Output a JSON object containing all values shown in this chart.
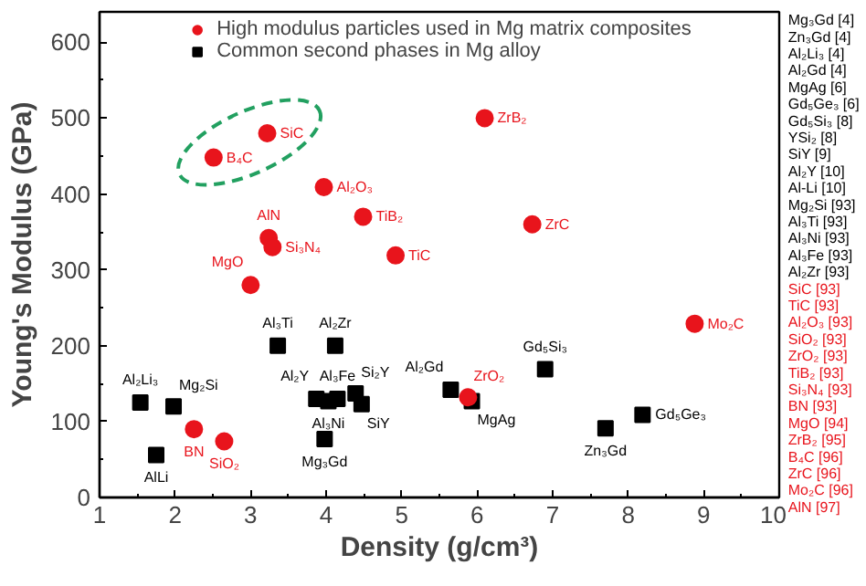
{
  "chart_data": {
    "type": "scatter",
    "xlabel": "Density (g/cm³)",
    "ylabel": "Young's Modulus (GPa)",
    "xlim": [
      1,
      10
    ],
    "ylim": [
      0,
      640
    ],
    "xticks": [
      1,
      2,
      3,
      4,
      5,
      6,
      7,
      8,
      9,
      10
    ],
    "yticks": [
      0,
      100,
      200,
      300,
      400,
      500,
      600
    ],
    "legend": "top",
    "grid": false,
    "series": [
      {
        "name": "High modulus particles used in Mg matrix composites",
        "color": "#e8141c",
        "marker": "circle",
        "x": [
          2.51,
          3.22,
          3.97,
          4.49,
          4.92,
          3.24,
          3.29,
          3.0,
          6.1,
          6.73,
          8.88,
          5.88,
          2.25,
          2.65
        ],
        "values": [
          448,
          480,
          409,
          370,
          319,
          342,
          330,
          280,
          500,
          360,
          229,
          132,
          90,
          74
        ]
      },
      {
        "name": "Common second phases in Mg alloy",
        "color": "#000000",
        "marker": "square",
        "x": [
          1.54,
          1.75,
          1.98,
          3.36,
          4.12,
          3.87,
          4.03,
          4.15,
          3.98,
          4.39,
          4.47,
          5.65,
          5.93,
          6.9,
          7.7,
          8.19
        ],
        "values": [
          125,
          56,
          120,
          200,
          200,
          130,
          127,
          130,
          77,
          137,
          123,
          142,
          127,
          169,
          91,
          109
        ]
      }
    ],
    "annotations": [
      {
        "text": "B₄C",
        "x": 2.51,
        "y": 448
      },
      {
        "text": "SiC",
        "x": 3.22,
        "y": 480
      },
      {
        "text": "Al₂O₃",
        "x": 3.97,
        "y": 409
      },
      {
        "text": "TiB₂",
        "x": 4.49,
        "y": 370
      },
      {
        "text": "TiC",
        "x": 4.92,
        "y": 319
      },
      {
        "text": "AlN",
        "x": 3.24,
        "y": 342
      },
      {
        "text": "Si₃N₄",
        "x": 3.29,
        "y": 330
      },
      {
        "text": "MgO",
        "x": 3.0,
        "y": 280
      },
      {
        "text": "ZrB₂",
        "x": 6.1,
        "y": 500
      },
      {
        "text": "ZrC",
        "x": 6.73,
        "y": 360
      },
      {
        "text": "Mo₂C",
        "x": 8.88,
        "y": 229
      },
      {
        "text": "ZrO₂",
        "x": 5.88,
        "y": 132
      },
      {
        "text": "BN",
        "x": 2.25,
        "y": 90
      },
      {
        "text": "SiO₂",
        "x": 2.65,
        "y": 74
      },
      {
        "text": "Al₂Li₃",
        "x": 1.54,
        "y": 125
      },
      {
        "text": "AlLi",
        "x": 1.75,
        "y": 56
      },
      {
        "text": "Mg₂Si",
        "x": 1.98,
        "y": 120
      },
      {
        "text": "Al₃Ti",
        "x": 3.36,
        "y": 200
      },
      {
        "text": "Al₂Zr",
        "x": 4.12,
        "y": 200
      },
      {
        "text": "Al₂Y",
        "x": 3.87,
        "y": 130
      },
      {
        "text": "Al₃Ni",
        "x": 4.03,
        "y": 127
      },
      {
        "text": "Al₃Fe",
        "x": 4.15,
        "y": 130
      },
      {
        "text": "Mg₃Gd",
        "x": 3.98,
        "y": 77
      },
      {
        "text": "Si₂Y",
        "x": 4.39,
        "y": 137
      },
      {
        "text": "SiY",
        "x": 4.47,
        "y": 123
      },
      {
        "text": "Al₂Gd",
        "x": 5.65,
        "y": 142
      },
      {
        "text": "MgAg",
        "x": 5.93,
        "y": 127
      },
      {
        "text": "Gd₅Si₃",
        "x": 6.9,
        "y": 169
      },
      {
        "text": "Zn₃Gd",
        "x": 7.7,
        "y": 91
      },
      {
        "text": "Gd₅Ge₃",
        "x": 8.19,
        "y": 109
      },
      "Mg₃Gd [4]",
      "Zn₃Gd [4]",
      "Al₂Li₃ [4]",
      "Al₂Gd [4]",
      "MgAg [6]",
      "Gd₅Ge₃ [6]",
      "Gd₅Si₃ [8]",
      "YSi₂ [8]",
      "SiY [9]",
      "Al₂Y [10]",
      "Al-Li [10]",
      "Mg₂Si [93]",
      "Al₃Ti [93]",
      "Al₃Ni [93]",
      "Al₃Fe [93]",
      "Al₂Zr [93]",
      "SiC [93]",
      "TiC [93]",
      "Al₂O₃ [93]",
      "SiO₂ [93]",
      "ZrO₂ [93]",
      "TiB₂ [93]",
      "Si₃N₄ [93]",
      "BN [93]",
      "MgO [94]",
      "ZrB₂ [95]",
      "B₄C [96]",
      "ZrC [96]",
      "Mo₂C [96]",
      "AlN [97]"
    ]
  }
}
